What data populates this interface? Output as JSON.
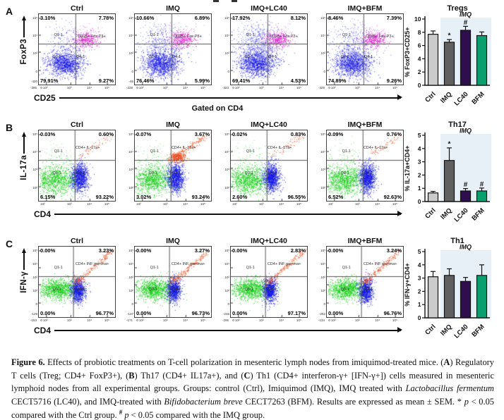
{
  "colors": {
    "dot_blue": "#1414e6",
    "dot_magenta": "#e020cc",
    "dot_green": "#0ccc0c",
    "dot_red": "#e64514",
    "shade": "#e8f0f7",
    "bars": [
      "#cbcbcb",
      "#606060",
      "#2f0e4d",
      "#0b9e6e"
    ]
  },
  "panels": [
    {
      "letter": "A",
      "y_axis": "FoxP3",
      "x_axis": "CD25",
      "gated": "Gated on CD4",
      "pattern": "treg",
      "quad_labels": {
        "q1": "Q1-1",
        "q2": "CD25+ Fox-P3+",
        "q3": "Q3-1",
        "q4": "Q4-1"
      },
      "x_ticks": [
        "0 10²",
        "10³",
        "10⁴",
        "10⁵"
      ],
      "y_ticks": [
        "10⁵",
        "10⁴",
        "10³",
        "0"
      ],
      "plots": [
        {
          "title": "Ctrl",
          "q1": "3.10%",
          "q2": "7.78%",
          "q3": "79.91%",
          "q4": "9.27%",
          "x_min": "-396",
          "y_min": "-420"
        },
        {
          "title": "IMQ",
          "q1": "10.66%",
          "q2": "6.89%",
          "q3": "76.46%",
          "q4": "5.99%",
          "x_min": "-228",
          "y_min": "-46"
        },
        {
          "title": "IMQ+LC40",
          "q1": "17.92%",
          "q2": "8.12%",
          "q3": "69.41%",
          "q4": "4.53%",
          "x_min": "-323",
          "y_min": ""
        },
        {
          "title": "IMQ+BFM",
          "q1": "8.46%",
          "q2": "7.39%",
          "q3": "74.89%",
          "q4": "9.26%",
          "x_min": "-329",
          "y_min": ""
        }
      ]
    },
    {
      "letter": "B",
      "y_axis": "IL-17a",
      "x_axis": "CD4",
      "pattern": "th17",
      "quad_labels": {
        "q1": "Q1-1",
        "q2": "CD4+ IL-17a+",
        "q3": "Q3-1",
        "q4": "Q4-1"
      },
      "x_ticks": [
        "10²",
        "10³",
        "10⁴",
        "10⁵"
      ],
      "y_ticks": [
        "10⁵",
        "10⁴",
        "10³",
        "10²"
      ],
      "plots": [
        {
          "title": "Ctrl",
          "q1": "0.03%",
          "q2": "0.60%",
          "q3": "6.15%",
          "q4": "93.22%",
          "x_min": "",
          "y_min": ""
        },
        {
          "title": "IMQ",
          "q1": "0.07%",
          "q2": "3.67%",
          "q3": "3.02%",
          "q4": "93.24%",
          "x_min": "",
          "y_min": ""
        },
        {
          "title": "IMQ+LC40",
          "q1": "0.02%",
          "q2": "0.83%",
          "q3": "2.60%",
          "q4": "96.55%",
          "x_min": "",
          "y_min": ""
        },
        {
          "title": "IMQ+BFM",
          "q1": "0.09%",
          "q2": "0.76%",
          "q3": "6.52%",
          "q4": "92.63%",
          "x_min": "",
          "y_min": ""
        }
      ]
    },
    {
      "letter": "C",
      "y_axis": "IFN-γ",
      "x_axis": "CD4",
      "pattern": "th1",
      "quad_labels": {
        "q1": "Q1-1",
        "q2": "CD4+ INF gamma+",
        "q3": "Q3-1",
        "q4": "Q4-1"
      },
      "x_ticks": [
        "0 10²",
        "10³",
        "10⁴",
        "10⁵"
      ],
      "y_ticks": [
        "10⁵",
        "10⁴",
        "10³",
        "10²",
        "0"
      ],
      "plots": [
        {
          "title": "Ctrl",
          "q1": "0.00%",
          "q2": "3.23%",
          "q3": "0.00%",
          "q4": "96.77%",
          "x_min": "-153",
          "y_min": "-129"
        },
        {
          "title": "IMQ",
          "q1": "0.00%",
          "q2": "3.27%",
          "q3": "0.00%",
          "q4": "96.73%",
          "x_min": "-171",
          "y_min": "-137"
        },
        {
          "title": "IMQ+LC40",
          "q1": "0.00%",
          "q2": "2.83%",
          "q3": "0.00%",
          "q4": "97.17%",
          "x_min": "-206",
          "y_min": "-246"
        },
        {
          "title": "IMQ+BFM",
          "q1": "0.00%",
          "q2": "3.24%",
          "q3": "0.00%",
          "q4": "96.76%",
          "x_min": "-134",
          "y_min": "-282"
        }
      ]
    }
  ],
  "chart_data": [
    {
      "type": "bar",
      "title": "Tregs",
      "group_label": "IMQ",
      "ylabel": "% FoxP3+CD25+",
      "xlabel": "",
      "categories": [
        "Ctrl",
        "IMQ",
        "LC40",
        "BFM"
      ],
      "values": [
        7.7,
        6.5,
        8.3,
        7.5
      ],
      "errors": [
        0.5,
        0.4,
        0.6,
        0.55
      ],
      "sig": [
        "",
        "*",
        "#",
        ""
      ],
      "ylim": [
        0,
        10
      ],
      "yticks": [
        0,
        2,
        4,
        6,
        8,
        10
      ],
      "grid": false,
      "legend": false
    },
    {
      "type": "bar",
      "title": "Th17",
      "group_label": "IMQ",
      "ylabel": "% IL-17a+CD4+",
      "xlabel": "",
      "categories": [
        "Ctrl",
        "IMQ",
        "LC40",
        "BFM"
      ],
      "values": [
        0.65,
        3.1,
        0.8,
        0.8
      ],
      "errors": [
        0.12,
        0.95,
        0.18,
        0.22
      ],
      "sig": [
        "",
        "*",
        "#",
        "#"
      ],
      "ylim": [
        0,
        5
      ],
      "yticks": [
        0,
        1,
        2,
        3,
        4,
        5
      ],
      "grid": false,
      "legend": false
    },
    {
      "type": "bar",
      "title": "Th1",
      "group_label": "IMQ",
      "ylabel": "% IFN-γ+CD4+",
      "xlabel": "",
      "categories": [
        "Ctrl",
        "IMQ",
        "LC40",
        "BFM"
      ],
      "values": [
        3.1,
        3.2,
        2.75,
        3.2
      ],
      "errors": [
        0.4,
        0.5,
        0.3,
        0.8
      ],
      "sig": [
        "",
        "",
        "",
        ""
      ],
      "ylim": [
        0,
        5
      ],
      "yticks": [
        0,
        1,
        2,
        3,
        4,
        5
      ],
      "grid": false,
      "legend": false
    }
  ],
  "caption": {
    "segments": [
      {
        "t": "Figure 6.",
        "s": "b"
      },
      {
        "t": " Effects of probiotic treatments on T-cell polarization in mesenteric lymph nodes from imiquimod-treated mice. (",
        "s": ""
      },
      {
        "t": "A",
        "s": "b"
      },
      {
        "t": ") Regulatory T cells (Treg; CD4+ FoxP3+), (",
        "s": ""
      },
      {
        "t": "B",
        "s": "b"
      },
      {
        "t": ") Th17 (CD4+ IL17a+), and (",
        "s": ""
      },
      {
        "t": "C",
        "s": "b"
      },
      {
        "t": ") Th1 (CD4+ interferon-γ+ [IFN-γ+]) cells measured in mesenteric lymphoid nodes from all experimental groups. Groups: control (Ctrl), Imiquimod (IMQ), IMQ treated with ",
        "s": ""
      },
      {
        "t": "Lactobacillus fermentum",
        "s": "i"
      },
      {
        "t": " CECT5716 (LC40), and IMQ-treated with ",
        "s": ""
      },
      {
        "t": "Bifidobacterium breve",
        "s": "i"
      },
      {
        "t": " CECT7263 (BFM). Results are expressed as mean ± SEM. * ",
        "s": ""
      },
      {
        "t": "p",
        "s": "i"
      },
      {
        "t": " < 0.05 compared with the Ctrl group. ",
        "s": ""
      },
      {
        "t": "#",
        "s": "sup"
      },
      {
        "t": " ",
        "s": ""
      },
      {
        "t": "p",
        "s": "i"
      },
      {
        "t": " < 0.05 compared with the IMQ group.",
        "s": ""
      }
    ]
  }
}
